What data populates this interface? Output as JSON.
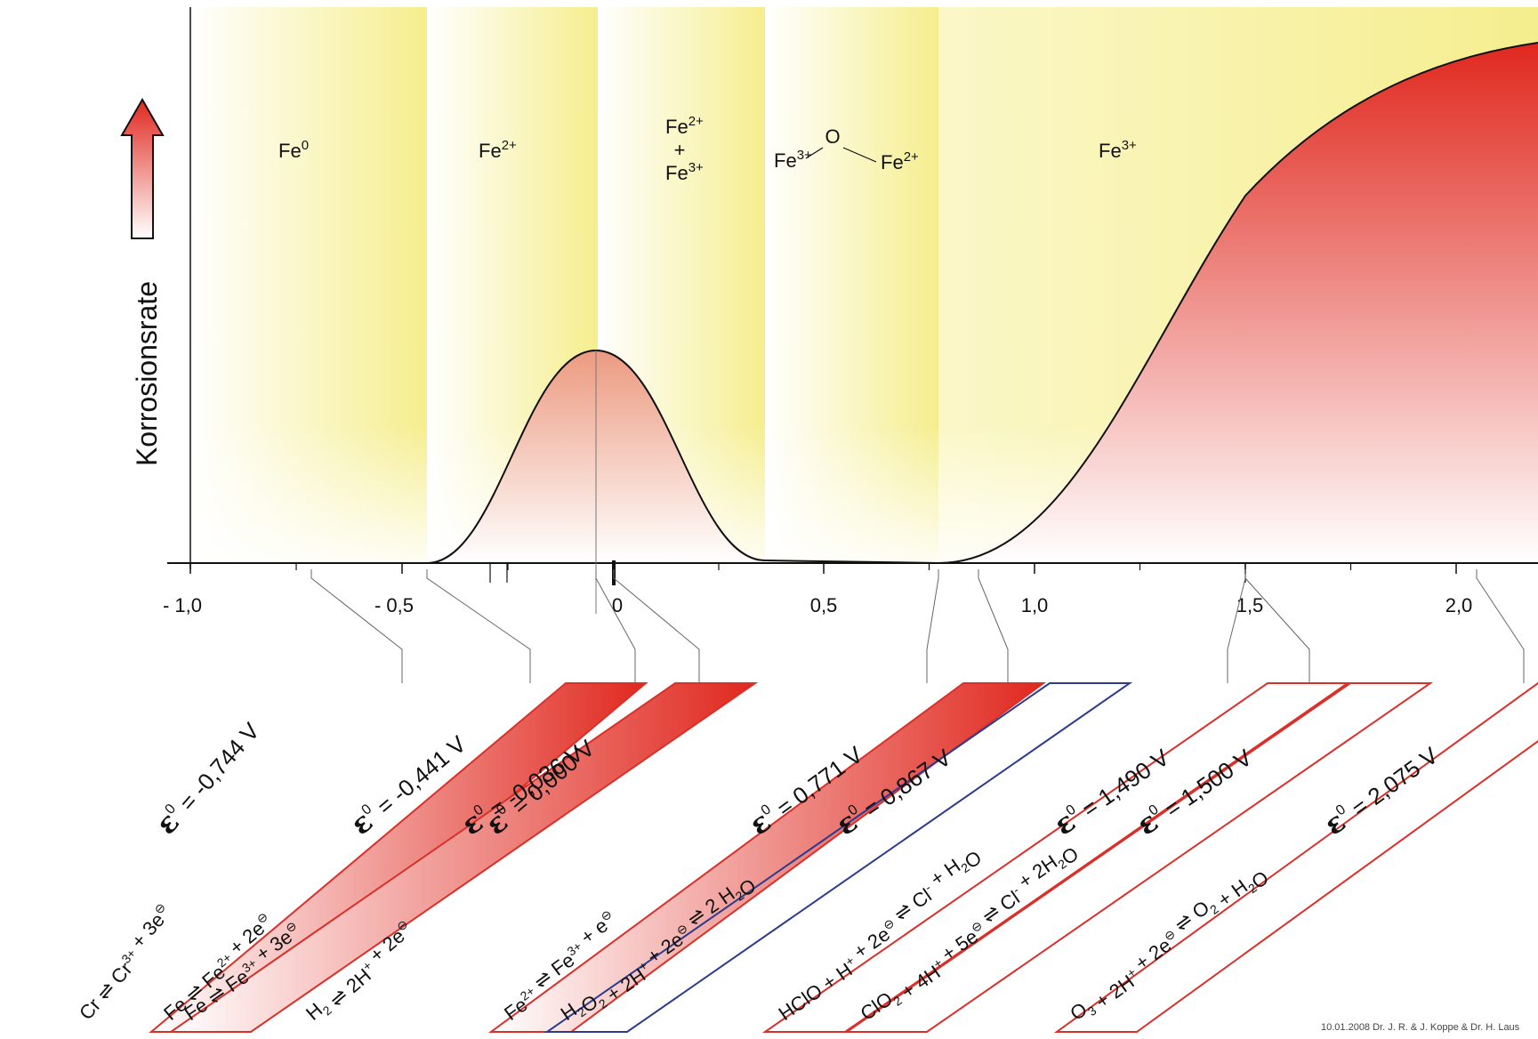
{
  "y_axis_label": "Korrosionsrate",
  "x_ticks": [
    "- 1,0",
    "- 0,5",
    "0",
    "0,5",
    "1,0",
    "1,5",
    "2,0"
  ],
  "regions": [
    {
      "label": "Fe",
      "sup": "0"
    },
    {
      "label": "Fe",
      "sup": "2+"
    },
    {
      "line1": "Fe",
      "line1_sup": "2+",
      "line2": "+",
      "line3": "Fe",
      "line3_sup": "3+"
    },
    {
      "left": "Fe",
      "left_sup": "3+",
      "center": "O",
      "right": "Fe",
      "right_sup": "2+"
    },
    {
      "label": "Fe",
      "sup": "3+"
    }
  ],
  "reactions": [
    {
      "eps": "ε",
      "eps_sup": "0",
      "value": "= -0,744 V",
      "equation": [
        {
          "t": "Cr  "
        },
        {
          "t": "⇌"
        },
        {
          "t": "  Cr"
        },
        {
          "sup": "3+"
        },
        {
          "t": " + 3e"
        },
        {
          "sup": "⊖"
        }
      ],
      "style": "none",
      "color": ""
    },
    {
      "eps": "ε",
      "eps_sup": "0",
      "value": "= -0,441 V",
      "equation": [
        {
          "t": "Fe  "
        },
        {
          "t": "⇌"
        },
        {
          "t": "  Fe"
        },
        {
          "sup": "2+"
        },
        {
          "t": " + 2e"
        },
        {
          "sup": "⊖"
        }
      ],
      "style": "gradient",
      "color": "#d9302a"
    },
    {
      "eps": "ε",
      "eps_sup": "0",
      "value": "= -0,036 V",
      "equation": [
        {
          "t": "Fe  "
        },
        {
          "t": "⇌"
        },
        {
          "t": "  Fe"
        },
        {
          "sup": "3+"
        },
        {
          "t": " + 3e"
        },
        {
          "sup": "⊖"
        }
      ],
      "style": "gradient",
      "color": "#d9302a"
    },
    {
      "eps": "ε",
      "eps_sup": "0",
      "value": "= 0,000 V",
      "equation": [
        {
          "t": "H"
        },
        {
          "sub": "2"
        },
        {
          "t": "  "
        },
        {
          "t": "⇌"
        },
        {
          "t": "  2H"
        },
        {
          "sup": "+"
        },
        {
          "t": " + 2e"
        },
        {
          "sup": "⊖"
        }
      ],
      "style": "none",
      "color": ""
    },
    {
      "eps": "ε",
      "eps_sup": "0",
      "value": "= 0,771 V",
      "equation": [
        {
          "t": "Fe"
        },
        {
          "sup": "2+"
        },
        {
          "t": "  "
        },
        {
          "t": "⇌"
        },
        {
          "t": "  Fe"
        },
        {
          "sup": "3+"
        },
        {
          "t": " +  e"
        },
        {
          "sup": "⊖"
        }
      ],
      "style": "gradient",
      "color": "#d9302a"
    },
    {
      "eps": "ε",
      "eps_sup": "0",
      "value": "= 0,867 V",
      "equation": [
        {
          "t": "H"
        },
        {
          "sub": "2"
        },
        {
          "t": "O"
        },
        {
          "sub": "2"
        },
        {
          "t": " + 2H"
        },
        {
          "sup": "+"
        },
        {
          "t": " + 2e"
        },
        {
          "sup": "⊖"
        },
        {
          "t": "  "
        },
        {
          "t": "⇌"
        },
        {
          "t": "  2 H"
        },
        {
          "sub": "2"
        },
        {
          "t": "O"
        }
      ],
      "style": "outline",
      "color": "#2c3a8f"
    },
    {
      "eps": "ε",
      "eps_sup": "0",
      "value": "= 1,490 V",
      "equation": [
        {
          "t": "HClO + H"
        },
        {
          "sup": "+"
        },
        {
          "t": " + 2e"
        },
        {
          "sup": "⊖"
        },
        {
          "t": "  "
        },
        {
          "t": "⇌"
        },
        {
          "t": "  Cl"
        },
        {
          "sup": "-"
        },
        {
          "t": " + H"
        },
        {
          "sub": "2"
        },
        {
          "t": "O"
        }
      ],
      "style": "outline",
      "color": "#d9302a"
    },
    {
      "eps": "ε",
      "eps_sup": "0",
      "value": "= 1,500 V",
      "equation": [
        {
          "t": "ClO"
        },
        {
          "sub": "2"
        },
        {
          "t": " + 4H"
        },
        {
          "sup": "+"
        },
        {
          "t": " + 5e"
        },
        {
          "sup": "⊖"
        },
        {
          "t": "  "
        },
        {
          "t": "⇌"
        },
        {
          "t": "  Cl"
        },
        {
          "sup": "-"
        },
        {
          "t": " + 2H"
        },
        {
          "sub": "2"
        },
        {
          "t": "O"
        }
      ],
      "style": "outline",
      "color": "#d9302a"
    },
    {
      "eps": "ε",
      "eps_sup": "0",
      "value": "= 2,075 V",
      "equation": [
        {
          "t": "O"
        },
        {
          "sub": "3"
        },
        {
          "t": " + 2H"
        },
        {
          "sup": "+"
        },
        {
          "t": " + 2e"
        },
        {
          "sup": "⊖"
        },
        {
          "t": "  "
        },
        {
          "t": "⇌"
        },
        {
          "t": "  O"
        },
        {
          "sub": "2"
        },
        {
          "t": " + H"
        },
        {
          "sub": "2"
        },
        {
          "t": "O"
        }
      ],
      "style": "outline",
      "color": "#d9302a"
    }
  ],
  "colors": {
    "yellow": "#f5ee8e",
    "red": "#e0281e",
    "axis": "#111111",
    "leader": "#666666"
  },
  "credit": "10.01.2008 Dr. J. R. & J. Koppe & Dr. H. Laus"
}
